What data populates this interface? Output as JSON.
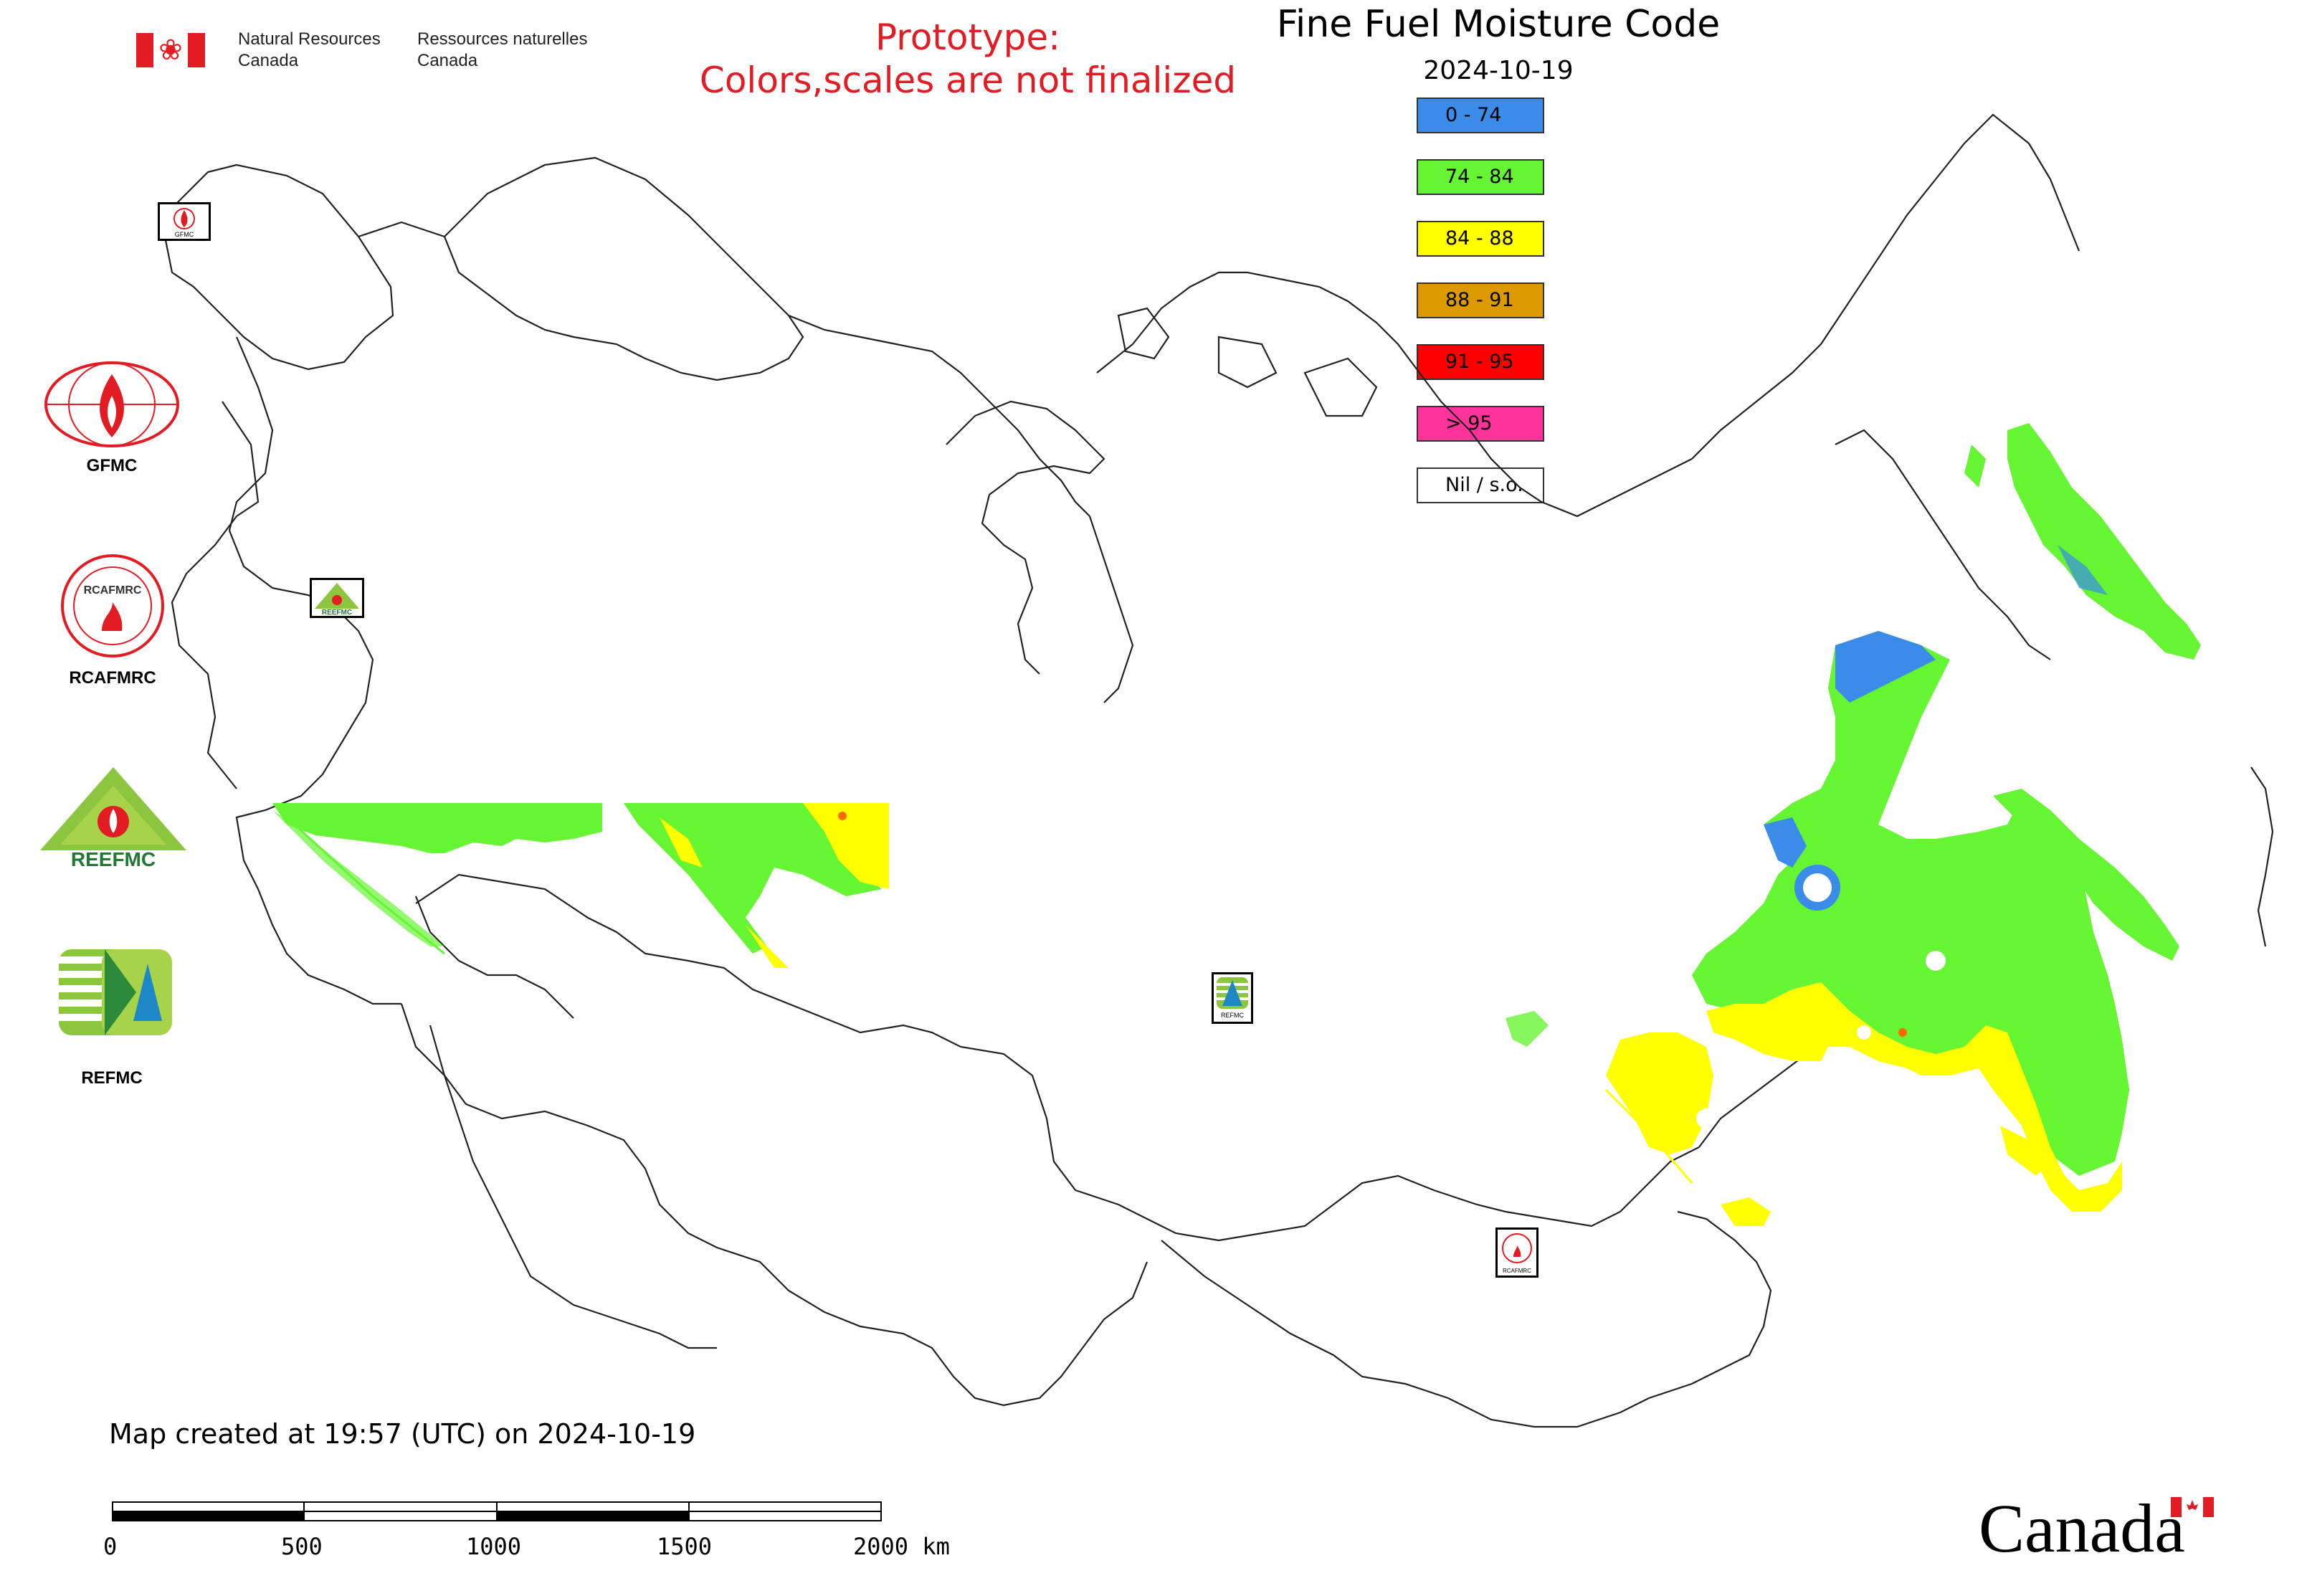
{
  "header": {
    "dept_en_line1": "Natural Resources",
    "dept_en_line2": "Canada",
    "dept_fr_line1": "Ressources naturelles",
    "dept_fr_line2": "Canada",
    "prototype_line1": "Prototype:",
    "prototype_line2": "Colors,scales are not finalized",
    "title": "Fine Fuel Moisture Code",
    "date": "2024-10-19"
  },
  "legend": [
    {
      "label": "0 - 74",
      "color": "#3b8be8"
    },
    {
      "label": "74 - 84",
      "color": "#66f533"
    },
    {
      "label": "84 - 88",
      "color": "#ffff00"
    },
    {
      "label": "88 - 91",
      "color": "#dd9a00"
    },
    {
      "label": "91 - 95",
      "color": "#ff0000"
    },
    {
      "label": "> 95",
      "color": "#ff3399"
    },
    {
      "label": "Nil / s.o.",
      "color": "#ffffff"
    }
  ],
  "side_logos": [
    {
      "label": "GFMC",
      "icon": "gfmc-logo-icon"
    },
    {
      "label": "RCAFMRC",
      "icon": "rcafmrc-logo-icon"
    },
    {
      "label": "REEFMC",
      "icon": "reefmc-logo-icon"
    },
    {
      "label": "REFMC",
      "icon": "refmc-logo-icon"
    }
  ],
  "logo_lettering": {
    "gfmc_mini": "GFMC",
    "reefmc_mini": "REEFMC",
    "refmc_mini": "REFMC",
    "rcafmrc_mini": "RCAFMRC"
  },
  "footer": {
    "created": "Map created at 19:57 (UTC) on 2024-10-19",
    "scale_ticks": [
      "0",
      "500",
      "1000",
      "1500",
      "2000 km"
    ],
    "wordmark": "Canada"
  }
}
